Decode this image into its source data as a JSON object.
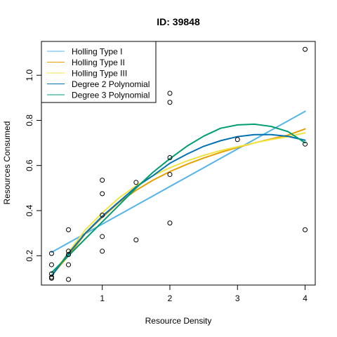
{
  "chart_data": {
    "type": "scatter",
    "title": "ID: 39848",
    "xlabel": "Resource Density",
    "ylabel": "Resources Consumed",
    "xlim": [
      0.1,
      4.15
    ],
    "ylim": [
      0.07,
      1.15
    ],
    "x_ticks": [
      1,
      2,
      3,
      4
    ],
    "x_tick_labels": [
      "1",
      "2",
      "3",
      "4"
    ],
    "y_ticks": [
      0.2,
      0.4,
      0.6,
      0.8,
      1.0
    ],
    "y_tick_labels": [
      "0.2",
      "0.4",
      "0.6",
      "0.8",
      "1.0"
    ],
    "grid": false,
    "legend_position": "top-left",
    "points": [
      {
        "x": 0.25,
        "y": 0.21
      },
      {
        "x": 0.25,
        "y": 0.16
      },
      {
        "x": 0.25,
        "y": 0.12
      },
      {
        "x": 0.25,
        "y": 0.105
      },
      {
        "x": 0.25,
        "y": 0.1
      },
      {
        "x": 0.5,
        "y": 0.315
      },
      {
        "x": 0.5,
        "y": 0.22
      },
      {
        "x": 0.5,
        "y": 0.205
      },
      {
        "x": 0.5,
        "y": 0.16
      },
      {
        "x": 0.5,
        "y": 0.095
      },
      {
        "x": 1.0,
        "y": 0.535
      },
      {
        "x": 1.0,
        "y": 0.475
      },
      {
        "x": 1.0,
        "y": 0.38
      },
      {
        "x": 1.0,
        "y": 0.285
      },
      {
        "x": 1.0,
        "y": 0.22
      },
      {
        "x": 1.5,
        "y": 0.525
      },
      {
        "x": 1.5,
        "y": 0.27
      },
      {
        "x": 2.0,
        "y": 0.92
      },
      {
        "x": 2.0,
        "y": 0.88
      },
      {
        "x": 2.0,
        "y": 0.635
      },
      {
        "x": 2.0,
        "y": 0.56
      },
      {
        "x": 2.0,
        "y": 0.345
      },
      {
        "x": 3.0,
        "y": 0.715
      },
      {
        "x": 4.0,
        "y": 1.115
      },
      {
        "x": 4.0,
        "y": 0.695
      },
      {
        "x": 4.0,
        "y": 0.315
      }
    ],
    "series": [
      {
        "name": "Holling Type I",
        "color": "#56B4E9",
        "x": [
          0.25,
          4.0
        ],
        "y": [
          0.215,
          0.84
        ]
      },
      {
        "name": "Holling Type II",
        "color": "#E69F00",
        "x": [
          0.25,
          0.5,
          0.75,
          1.0,
          1.25,
          1.5,
          1.75,
          2.0,
          2.25,
          2.5,
          2.75,
          3.0,
          3.25,
          3.5,
          3.75,
          4.0
        ],
        "y": [
          0.112,
          0.2,
          0.298,
          0.37,
          0.437,
          0.49,
          0.535,
          0.573,
          0.605,
          0.633,
          0.658,
          0.68,
          0.7,
          0.718,
          0.735,
          0.762
        ]
      },
      {
        "name": "Holling Type III",
        "color": "#F0E442",
        "x": [
          0.25,
          0.5,
          0.75,
          1.0,
          1.25,
          1.5,
          1.75,
          2.0,
          2.25,
          2.5,
          2.75,
          3.0,
          3.25,
          3.5,
          3.75,
          4.0
        ],
        "y": [
          0.112,
          0.215,
          0.315,
          0.39,
          0.457,
          0.51,
          0.555,
          0.59,
          0.62,
          0.645,
          0.666,
          0.683,
          0.7,
          0.715,
          0.728,
          0.745
        ]
      },
      {
        "name": "Degree 2 Polynomial",
        "color": "#0072B2",
        "x": [
          0.25,
          0.5,
          0.75,
          1.0,
          1.25,
          1.5,
          1.75,
          2.0,
          2.25,
          2.5,
          2.75,
          3.0,
          3.25,
          3.5,
          3.75,
          4.0
        ],
        "y": [
          0.11,
          0.21,
          0.3,
          0.375,
          0.44,
          0.505,
          0.555,
          0.61,
          0.65,
          0.685,
          0.71,
          0.728,
          0.737,
          0.737,
          0.729,
          0.712
        ]
      },
      {
        "name": "Degree 3 Polynomial",
        "color": "#009E73",
        "x": [
          0.25,
          0.5,
          0.75,
          1.0,
          1.25,
          1.5,
          1.75,
          2.0,
          2.25,
          2.5,
          2.75,
          3.0,
          3.25,
          3.5,
          3.75,
          4.0
        ],
        "y": [
          0.125,
          0.2,
          0.275,
          0.35,
          0.425,
          0.5,
          0.57,
          0.63,
          0.685,
          0.73,
          0.765,
          0.78,
          0.783,
          0.773,
          0.75,
          0.7
        ]
      }
    ]
  }
}
